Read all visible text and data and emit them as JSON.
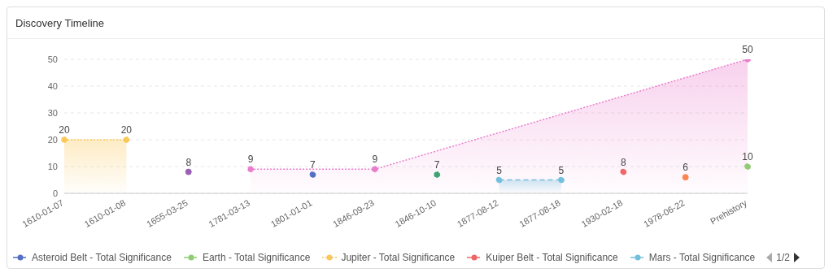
{
  "chart_data": {
    "type": "line",
    "title": "Discovery Timeline",
    "categories": [
      "1610-01-07",
      "1610-01-08",
      "1655-03-25",
      "1781-03-13",
      "1801-01-01",
      "1846-09-23",
      "1846-10-10",
      "1877-08-12",
      "1877-08-18",
      "1930-02-18",
      "1978-06-22",
      "Prehistory"
    ],
    "series": [
      {
        "name": "Asteroid Belt - Total Significance",
        "color": "#5470c6",
        "line_style": "dashed",
        "values": [
          null,
          null,
          null,
          null,
          7,
          null,
          null,
          null,
          null,
          null,
          null,
          null
        ]
      },
      {
        "name": "Earth - Total Significance",
        "color": "#91cc75",
        "line_style": "dashed",
        "values": [
          null,
          null,
          null,
          null,
          null,
          null,
          null,
          null,
          null,
          null,
          null,
          10
        ]
      },
      {
        "name": "Jupiter - Total Significance",
        "type": "area",
        "color": "#fac858",
        "line_style": "dotted",
        "values": [
          20,
          20,
          null,
          null,
          null,
          null,
          null,
          null,
          null,
          null,
          null,
          null
        ]
      },
      {
        "name": "Kuiper Belt - Total Significance",
        "color": "#ee6666",
        "line_style": "dashed",
        "values": [
          null,
          null,
          null,
          null,
          null,
          null,
          null,
          null,
          null,
          8,
          null,
          null
        ]
      },
      {
        "name": "Mars - Total Significance",
        "type": "area",
        "color": "#73c0de",
        "line_style": "dashed",
        "values": [
          null,
          null,
          null,
          null,
          null,
          null,
          null,
          5,
          5,
          null,
          null,
          null
        ]
      },
      {
        "color": "#3ba272",
        "line_style": "dotted",
        "values": [
          null,
          null,
          null,
          null,
          null,
          null,
          7,
          null,
          null,
          null,
          null,
          null
        ]
      },
      {
        "color": "#9a60b4",
        "values": [
          null,
          null,
          8,
          null,
          null,
          null,
          null,
          null,
          null,
          null,
          null,
          null
        ]
      },
      {
        "type": "area",
        "color": "#ea7ccc",
        "line_style": "dotted",
        "values": [
          null,
          null,
          null,
          9,
          null,
          9,
          null,
          null,
          null,
          null,
          null,
          50
        ]
      },
      {
        "color": "#fc8452",
        "values": [
          null,
          null,
          null,
          null,
          null,
          null,
          null,
          null,
          null,
          null,
          6,
          null
        ]
      }
    ],
    "ylim": [
      0,
      50
    ],
    "yticks": [
      0,
      10,
      20,
      30,
      40,
      50
    ],
    "grid": "y",
    "marker": "circle",
    "data_labels": true,
    "legend": "bottom",
    "annotations": [
      "1/2"
    ]
  }
}
